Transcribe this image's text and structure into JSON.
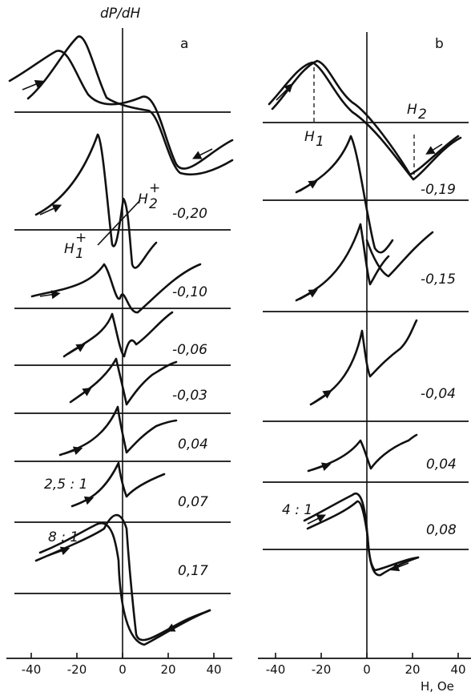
{
  "chart_data": [
    {
      "type": "line",
      "panel": "a",
      "ylabel": "dP/dH",
      "xlim": [
        -45,
        48
      ],
      "x_ticks": [
        -40,
        -20,
        0,
        20,
        40
      ],
      "traces": [
        {
          "label": "",
          "description": "top spectrum, resonance peaks near -20 and +20 Oe"
        },
        {
          "label": "-0,20"
        },
        {
          "label": "-0,10"
        },
        {
          "label": "-0,06"
        },
        {
          "label": "-0,03"
        },
        {
          "label": "0,04"
        },
        {
          "label": "0,07"
        },
        {
          "label": "0,17"
        }
      ],
      "annotations": [
        {
          "text": "H",
          "sub": "1",
          "sup": "+"
        },
        {
          "text": "H",
          "sub": "2",
          "sup": "+"
        },
        {
          "text": "2,5 : 1"
        },
        {
          "text": "8 : 1"
        }
      ]
    },
    {
      "type": "line",
      "panel": "b",
      "xlabel": "H, Oe",
      "xlim": [
        -45,
        48
      ],
      "x_ticks": [
        -40,
        -20,
        0,
        20,
        40
      ],
      "traces": [
        {
          "label": "",
          "description": "top spectrum with H1 near -22 Oe and H2 near +22 Oe"
        },
        {
          "label": "-0,19"
        },
        {
          "label": "-0,15"
        },
        {
          "label": "-0,04"
        },
        {
          "label": "0,04"
        },
        {
          "label": "0,08"
        }
      ],
      "annotations": [
        {
          "text": "H",
          "sub": "1"
        },
        {
          "text": "H",
          "sub": "2"
        },
        {
          "text": "4 : 1"
        }
      ]
    }
  ],
  "ui": {
    "ylabel": "dP/dH",
    "panel_a": "a",
    "panel_b": "b",
    "xlabel": "H, Oe",
    "ticks": [
      "-40",
      "-20",
      "0",
      "20",
      "40"
    ],
    "labels_a": [
      "-0,20",
      "-0,10",
      "-0,06",
      "-0,03",
      "0,04",
      "0,07",
      "0,17"
    ],
    "labels_b": [
      "-0,19",
      "-0,15",
      "-0,04",
      "0,04",
      "0,08"
    ],
    "h": "H",
    "sub1": "1",
    "sub2": "2",
    "plus": "+",
    "ratio_a1": "2,5 : 1",
    "ratio_a2": "8 : 1",
    "ratio_b": "4 : 1"
  }
}
